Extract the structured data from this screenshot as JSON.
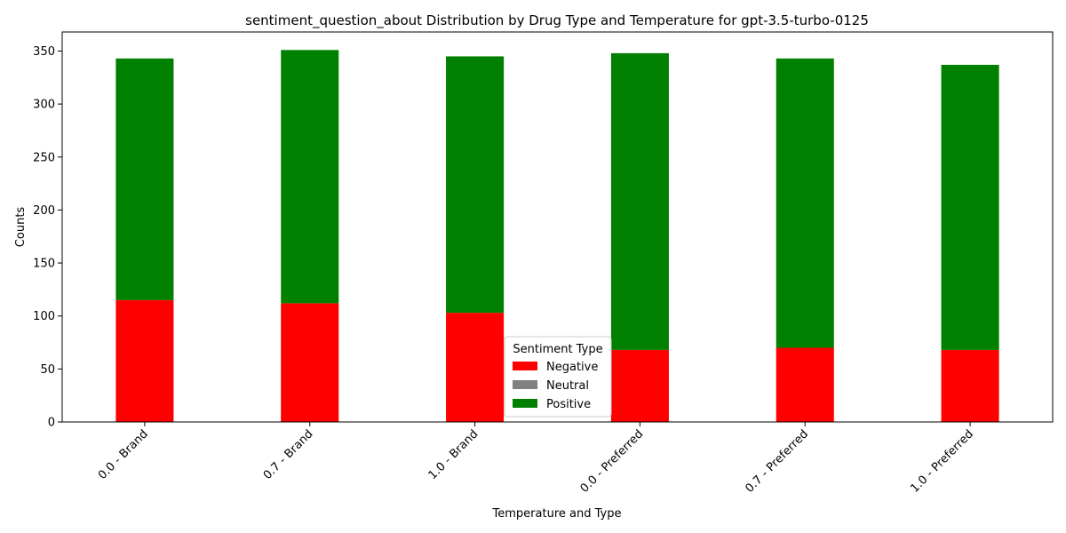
{
  "chart_data": {
    "type": "bar",
    "stacked": true,
    "title": "sentiment_question_about Distribution by Drug Type and Temperature for gpt-3.5-turbo-0125",
    "xlabel": "Temperature and Type",
    "ylabel": "Counts",
    "ylim": [
      0,
      368
    ],
    "yticks": [
      0,
      50,
      100,
      150,
      200,
      250,
      300,
      350
    ],
    "categories": [
      "0.0 - Brand",
      "0.7 - Brand",
      "1.0 - Brand",
      "0.0 - Preferred",
      "0.7 - Preferred",
      "1.0 - Preferred"
    ],
    "series": [
      {
        "name": "Negative",
        "color": "#ff0000",
        "values": [
          115,
          112,
          103,
          68,
          70,
          68
        ]
      },
      {
        "name": "Neutral",
        "color": "#808080",
        "values": [
          0,
          0,
          0,
          0,
          0,
          0
        ]
      },
      {
        "name": "Positive",
        "color": "#008000",
        "values": [
          228,
          239,
          242,
          280,
          273,
          269
        ]
      }
    ],
    "legend": {
      "title": "Sentiment Type",
      "position": "lower center"
    },
    "grid": false
  }
}
